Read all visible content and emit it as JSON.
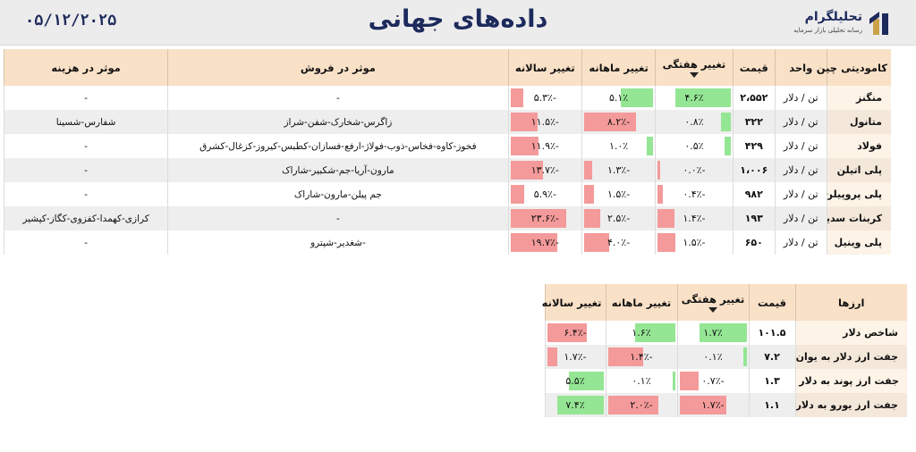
{
  "header": {
    "date": "۰۵/۱۲/۲۰۲۵",
    "title": "داده‌های جهانی",
    "logo_name": "تحلیلگرام",
    "logo_tagline": "رسانه تحلیلی بازار سرمایه"
  },
  "commodities": {
    "columns": [
      "کامودیتی چین",
      "واحد",
      "قیمت",
      "تغییر هفتگی",
      "تغییر ماهانه",
      "تغییر سالانه",
      "موثر در فروش",
      "موثر در هزینه"
    ],
    "rows": [
      {
        "name": "منگنز",
        "unit": "تن / دلار",
        "price": "۲،۵۵۲",
        "weekly": "۴.۶٪",
        "weekly_v": 4.6,
        "monthly": "۵.۱٪",
        "monthly_v": 5.1,
        "yearly": "-۵.۳٪",
        "yearly_v": -5.3,
        "sales": "-",
        "cost": "-"
      },
      {
        "name": "متانول",
        "unit": "تن / دلار",
        "price": "۳۲۲",
        "weekly": "۰.۸٪",
        "weekly_v": 0.8,
        "monthly": "-۸.۲٪",
        "monthly_v": -8.2,
        "yearly": "-۱۱.۵٪",
        "yearly_v": -11.5,
        "sales": "زاگرس-شخارک-شفن-شراز",
        "cost": "شفارس-شسینا"
      },
      {
        "name": "فولاد",
        "unit": "تن / دلار",
        "price": "۴۲۹",
        "weekly": "۰.۵٪",
        "weekly_v": 0.5,
        "monthly": "۱.۰٪",
        "monthly_v": 1.0,
        "yearly": "-۱۱.۹٪",
        "yearly_v": -11.9,
        "sales": "فخوز-کاوه-فخاس-ذوب-فولاژ-ارفع-فسازان-کطبس-کیروز-کزغال-کشرق",
        "cost": "-"
      },
      {
        "name": "پلی اتیلن",
        "unit": "تن / دلار",
        "price": "۱،۰۰۶",
        "weekly": "-۰.۰٪",
        "weekly_v": -0.05,
        "monthly": "-۱.۳٪",
        "monthly_v": -1.3,
        "yearly": "-۱۳.۷٪",
        "yearly_v": -13.7,
        "sales": "مارون-آریا-جم-شکبیر-شاراک",
        "cost": "-"
      },
      {
        "name": "پلی پروپیلن",
        "unit": "تن / دلار",
        "price": "۹۸۲",
        "weekly": "-۰.۴٪",
        "weekly_v": -0.4,
        "monthly": "-۱.۵٪",
        "monthly_v": -1.5,
        "yearly": "-۵.۹٪",
        "yearly_v": -5.9,
        "sales": "جم پیلن-مارون-شاراک",
        "cost": "-"
      },
      {
        "name": "کربنات سدیم",
        "unit": "تن / دلار",
        "price": "۱۹۳",
        "weekly": "-۱.۴٪",
        "weekly_v": -1.4,
        "monthly": "-۲.۵٪",
        "monthly_v": -2.5,
        "yearly": "-۲۳.۶٪",
        "yearly_v": -23.6,
        "sales": "-",
        "cost": "کرازی-کهمدا-کفزوی-کگاز-کپشیر"
      },
      {
        "name": "پلی وینیل",
        "unit": "تن / دلار",
        "price": "۶۵۰",
        "weekly": "-۱.۵٪",
        "weekly_v": -1.5,
        "monthly": "-۴.۰٪",
        "monthly_v": -4.0,
        "yearly": "-۱۹.۷٪",
        "yearly_v": -19.7,
        "sales": "-شغدیر-شپترو",
        "cost": "-"
      }
    ]
  },
  "currencies": {
    "columns": [
      "ارزها",
      "قیمت",
      "تغییر هفتگی",
      "تغییر ماهانه",
      "تغییر سالانه"
    ],
    "rows": [
      {
        "name": "شاخص دلار",
        "price": "۱۰۱.۵",
        "weekly": "۱.۷٪",
        "weekly_v": 1.7,
        "monthly": "۱.۶٪",
        "monthly_v": 1.6,
        "yearly": "-۶.۴٪",
        "yearly_v": -6.4
      },
      {
        "name": "جفت ارز دلار به یوان",
        "price": "۷.۲",
        "weekly": "۰.۱٪",
        "weekly_v": 0.1,
        "monthly": "-۱.۴٪",
        "monthly_v": -1.4,
        "yearly": "-۱.۷٪",
        "yearly_v": -1.7
      },
      {
        "name": "جفت ارز پوند به دلار",
        "price": "۱.۳",
        "weekly": "-۰.۷٪",
        "weekly_v": -0.7,
        "monthly": "۰.۱٪",
        "monthly_v": 0.1,
        "yearly": "۵.۵٪",
        "yearly_v": 5.5
      },
      {
        "name": "جفت ارز یورو به دلار",
        "price": "۱.۱",
        "weekly": "-۱.۷٪",
        "weekly_v": -1.7,
        "monthly": "-۲.۰٪",
        "monthly_v": -2.0,
        "yearly": "۷.۴٪",
        "yearly_v": 7.4
      }
    ]
  },
  "colors": {
    "negative": "#f49a9a",
    "positive": "#94e694",
    "header_bg": "#f9e1c7",
    "title": "#1d2a5c"
  }
}
